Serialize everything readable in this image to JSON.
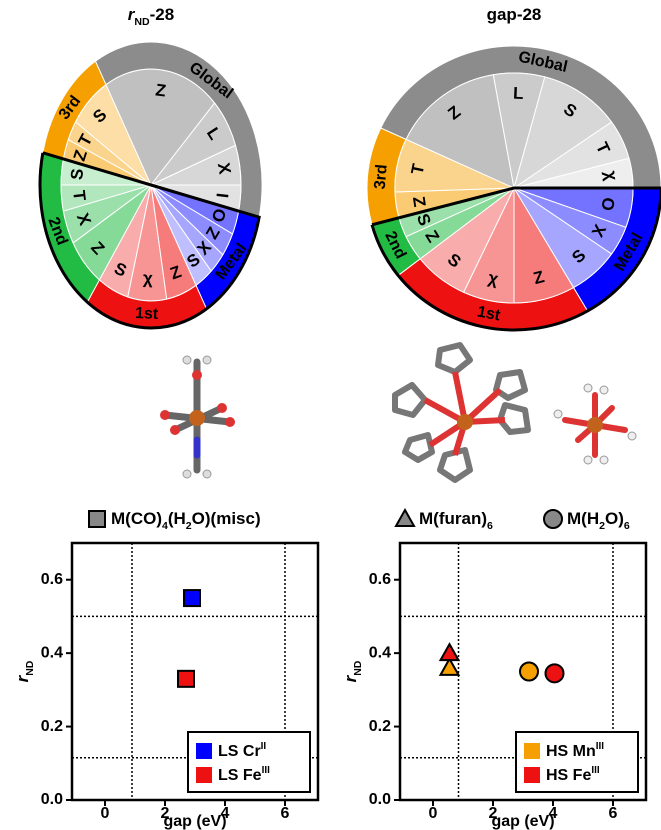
{
  "chart_data": [
    {
      "type": "sunburst",
      "title": [
        "r",
        "ND",
        "-28"
      ],
      "groups": [
        {
          "name": "3rd",
          "color": "#f5a000",
          "value": 47,
          "features": [
            "Z",
            "T",
            "S"
          ],
          "feature_values": [
            10,
            10,
            27
          ]
        },
        {
          "name": "Global",
          "color": "#8c8c8c",
          "value": 133,
          "features": [
            "Z",
            "L",
            "X",
            "I"
          ],
          "feature_values": [
            75,
            25,
            20,
            13
          ]
        },
        {
          "name": "Metal",
          "color": "#0000ff",
          "value": 47,
          "features": [
            "O",
            "Z",
            "X",
            "S"
          ],
          "feature_values": [
            12,
            12,
            11,
            12
          ]
        },
        {
          "name": "1st",
          "color": "#ee1111",
          "value": 65,
          "features": [
            "Z",
            "χ",
            "S"
          ],
          "feature_values": [
            20,
            25,
            20
          ]
        },
        {
          "name": "2nd",
          "color": "#22bb44",
          "value": 68,
          "features": [
            "Z",
            "X",
            "T",
            "S"
          ],
          "feature_values": [
            25,
            17,
            13,
            13
          ]
        }
      ]
    },
    {
      "type": "sunburst",
      "title": [
        "gap-28"
      ],
      "groups": [
        {
          "name": "3rd",
          "color": "#f5a000",
          "value": 40,
          "features": [
            "Z",
            "T"
          ],
          "feature_values": [
            13,
            27
          ]
        },
        {
          "name": "Global",
          "color": "#8c8c8c",
          "value": 155,
          "features": [
            "Z",
            "L",
            "S",
            "T",
            "χ"
          ],
          "feature_values": [
            55,
            25,
            40,
            20,
            15
          ]
        },
        {
          "name": "Metal",
          "color": "#0000ff",
          "value": 60,
          "features": [
            "O",
            "X",
            "S"
          ],
          "feature_values": [
            20,
            15,
            25
          ]
        },
        {
          "name": "1st",
          "color": "#ee1111",
          "value": 82,
          "features": [
            "Z",
            "χ",
            "S"
          ],
          "feature_values": [
            30,
            25,
            27
          ]
        },
        {
          "name": "2nd",
          "color": "#22bb44",
          "value": 23,
          "features": [
            "Z",
            "S"
          ],
          "feature_values": [
            13,
            10
          ]
        }
      ]
    },
    {
      "type": "scatter",
      "xlabel": "gap (eV)",
      "ylabel": [
        "r",
        "ND"
      ],
      "xlim": [
        -1.1,
        7.1
      ],
      "ylim": [
        0,
        0.7
      ],
      "xticks": [
        0,
        2,
        4,
        6
      ],
      "yticks": [
        {
          "value": 0,
          "label": "0.0"
        },
        {
          "value": 0.2,
          "label": "0.2"
        },
        {
          "value": 0.4,
          "label": "0.4"
        },
        {
          "value": 0.6,
          "label": "0.6"
        }
      ],
      "ref_x": [
        0.9,
        6
      ],
      "ref_y": [
        0.5,
        0.115
      ],
      "legend": "lower right",
      "series": [
        {
          "name": [
            "LS Cr",
            "II"
          ],
          "color": "#0000ff",
          "markers": [
            "square"
          ],
          "x": [
            2.9
          ],
          "values": [
            0.55
          ]
        },
        {
          "name": [
            "LS Fe",
            "III"
          ],
          "color": "#ee1111",
          "markers": [
            "square"
          ],
          "x": [
            2.7
          ],
          "values": [
            0.33
          ]
        }
      ]
    },
    {
      "type": "scatter",
      "xlabel": "gap (eV)",
      "ylabel": [
        "r",
        "ND"
      ],
      "xlim": [
        -1.1,
        7.1
      ],
      "ylim": [
        0,
        0.7
      ],
      "xticks": [
        0,
        2,
        4,
        6
      ],
      "yticks": [
        {
          "value": 0,
          "label": "0.0"
        },
        {
          "value": 0.2,
          "label": "0.2"
        },
        {
          "value": 0.4,
          "label": "0.4"
        },
        {
          "value": 0.6,
          "label": "0.6"
        }
      ],
      "ref_x": [
        0.85,
        6
      ],
      "ref_y": [
        0.5,
        0.115
      ],
      "legend": "lower right",
      "series": [
        {
          "name": [
            "HS Mn",
            "III"
          ],
          "color": "#f5a000",
          "markers": [
            "triangle",
            "circle"
          ],
          "x": [
            0.55,
            3.2
          ],
          "values": [
            0.36,
            0.35
          ]
        },
        {
          "name": [
            "HS Fe",
            "III"
          ],
          "color": "#ee1111",
          "markers": [
            "triangle",
            "circle"
          ],
          "x": [
            0.55,
            4.05
          ],
          "values": [
            0.4,
            0.345
          ]
        }
      ]
    }
  ],
  "shape_legend": [
    {
      "shape": "square",
      "label": [
        "M(CO)",
        "4",
        "(H",
        "2",
        "O)(misc)"
      ]
    },
    {
      "shape": "triangle",
      "label": [
        "M(furan)",
        "6"
      ]
    },
    {
      "shape": "circle",
      "label": [
        "M(H",
        "2",
        "O)",
        "6"
      ]
    }
  ]
}
